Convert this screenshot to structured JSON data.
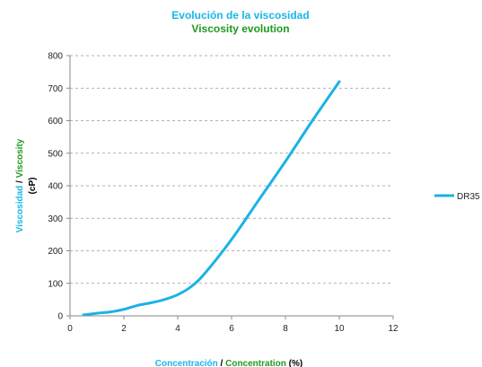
{
  "colors": {
    "cyan": "#1ab7e8",
    "green": "#1f9a1f",
    "series": "#1ab2e6",
    "grid": "#999999",
    "axis": "#888888"
  },
  "chart_data": {
    "type": "line",
    "title": {
      "es": "Evolución de la  viscosidad",
      "en": "Viscosity evolution"
    },
    "xlabel": {
      "es": "Concentración",
      "sep": "/",
      "en": "Concentration",
      "unit": "(%)"
    },
    "ylabel": {
      "es": "Viscosidad",
      "sep": "/",
      "en": "Viscosity",
      "unit": "(cP)"
    },
    "xlim": [
      0,
      12
    ],
    "ylim": [
      0,
      800
    ],
    "x_ticks": [
      "0",
      "2",
      "4",
      "6",
      "8",
      "10",
      "12"
    ],
    "y_ticks": [
      "0",
      "100",
      "200",
      "300",
      "400",
      "500",
      "600",
      "700",
      "800"
    ],
    "grid": "horizontal dashed",
    "legend_position": "right",
    "series": [
      {
        "name": "DR35",
        "x": [
          0.5,
          1.0,
          1.5,
          2.0,
          2.5,
          3.0,
          3.5,
          4.0,
          4.5,
          5.0,
          6.0,
          7.0,
          8.0,
          9.0,
          10.0
        ],
        "y": [
          3,
          8,
          12,
          20,
          32,
          40,
          50,
          65,
          90,
          130,
          235,
          355,
          475,
          600,
          720
        ]
      }
    ]
  }
}
